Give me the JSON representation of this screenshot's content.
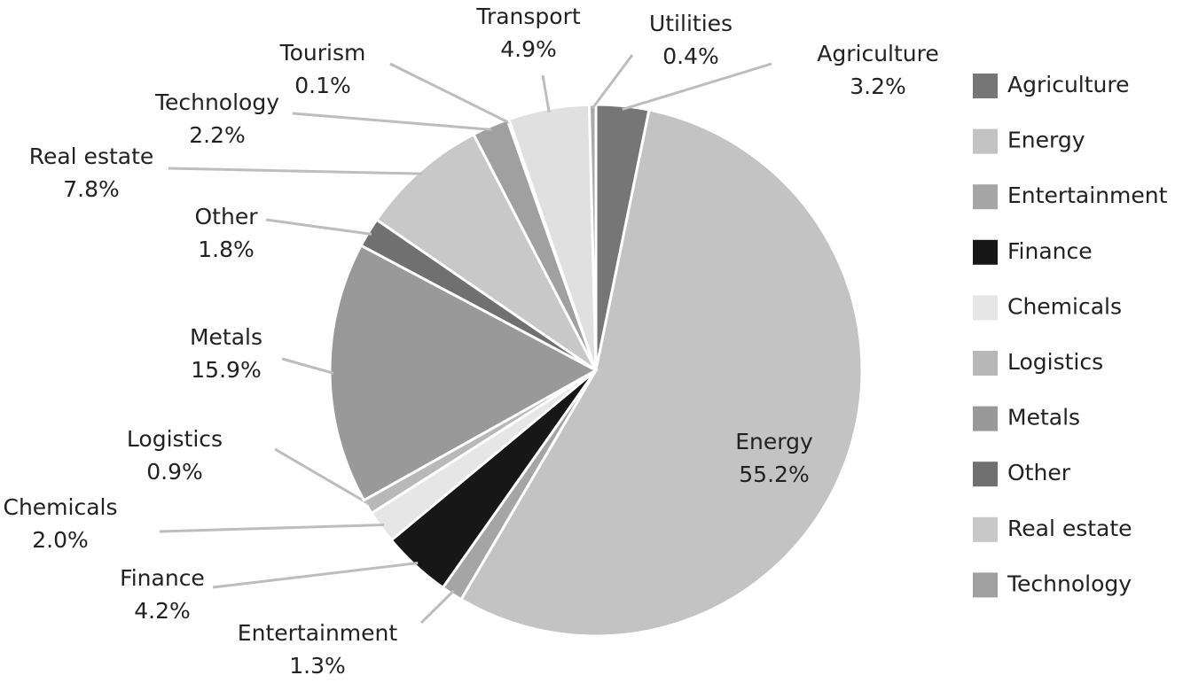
{
  "chart_data": {
    "type": "pie",
    "categories": [
      "Agriculture",
      "Energy",
      "Entertainment",
      "Finance",
      "Chemicals",
      "Logistics",
      "Metals",
      "Other",
      "Real estate",
      "Technology",
      "Tourism",
      "Transport",
      "Utilities"
    ],
    "values": [
      3.2,
      55.2,
      1.3,
      4.2,
      2.0,
      0.9,
      15.9,
      1.8,
      7.8,
      2.2,
      0.1,
      4.9,
      0.4
    ],
    "value_labels": [
      "3.2%",
      "55.2%",
      "1.3%",
      "4.2%",
      "2.0%",
      "0.9%",
      "15.9%",
      "1.8%",
      "7.8%",
      "2.2%",
      "0.1%",
      "4.9%",
      "0.4%"
    ],
    "colors": [
      "#767676",
      "#c3c3c3",
      "#a5a5a5",
      "#171717",
      "#e6e6e6",
      "#b8b8b8",
      "#999999",
      "#707070",
      "#c8c8c8",
      "#a0a0a0",
      "#5a5a5a",
      "#e0e0e0",
      "#aaaaaa"
    ],
    "legend": [
      "Agriculture",
      "Energy",
      "Entertainment",
      "Finance",
      "Chemicals",
      "Logistics",
      "Metals",
      "Other",
      "Real estate",
      "Technology"
    ],
    "legend_position": "right"
  }
}
